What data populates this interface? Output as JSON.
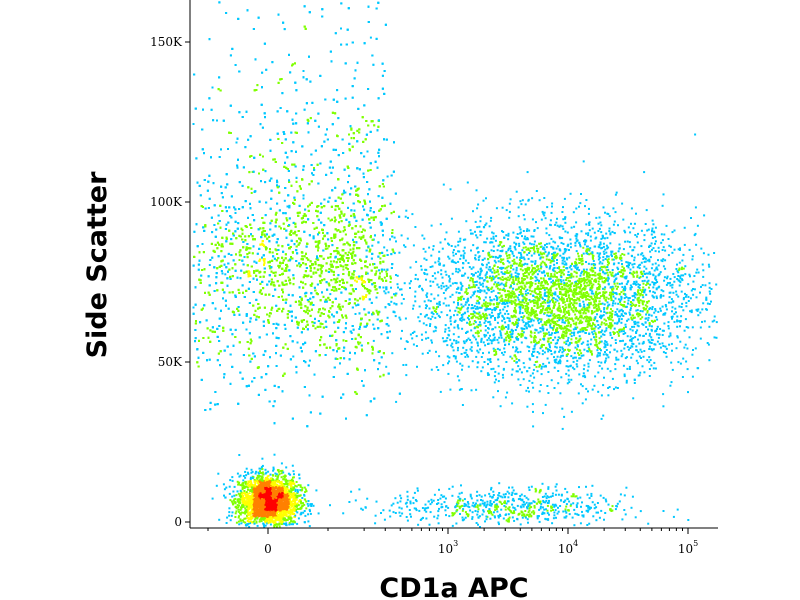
{
  "chart_data": {
    "type": "scatter",
    "style": "flow-cytometry pseudocolor density dot plot",
    "title": "",
    "xlabel": "CD1a APC",
    "ylabel": "Side Scatter",
    "x_scale": "biexponential",
    "y_scale": "linear",
    "xlim": [
      -300,
      200000
    ],
    "ylim": [
      0,
      165000
    ],
    "x_ticks": [
      {
        "value": 0,
        "label": "0",
        "exponent": ""
      },
      {
        "value": 1000,
        "label": "10",
        "exponent": "3"
      },
      {
        "value": 10000,
        "label": "10",
        "exponent": "4"
      },
      {
        "value": 100000,
        "label": "10",
        "exponent": "5"
      }
    ],
    "y_ticks": [
      {
        "value": 0,
        "label": "0"
      },
      {
        "value": 50000,
        "label": "50K"
      },
      {
        "value": 100000,
        "label": "100K"
      },
      {
        "value": 150000,
        "label": "150K"
      }
    ],
    "density_colormap": [
      "#0000cc",
      "#00c8ff",
      "#7fff00",
      "#ffff00",
      "#ff8000",
      "#ff0000"
    ],
    "populations": [
      {
        "name": "",
        "x_center": 0,
        "y_center": 7000,
        "x_spread": 25,
        "y_spread": 4000,
        "relative_density": 1.0
      },
      {
        "name": "",
        "x_center": 50,
        "y_center": 75000,
        "x_spread": 120,
        "y_spread": 16000,
        "relative_density": 0.55
      },
      {
        "name": "",
        "x_center": 8000,
        "y_center": 70000,
        "x_spread_log10": 0.6,
        "y_spread": 12000,
        "relative_density": 0.18
      },
      {
        "name": "",
        "x_center": 3000,
        "y_center": 5000,
        "x_spread_log10": 0.5,
        "y_spread": 3000,
        "relative_density": 0.04
      }
    ],
    "grid": false,
    "legend": "none"
  }
}
